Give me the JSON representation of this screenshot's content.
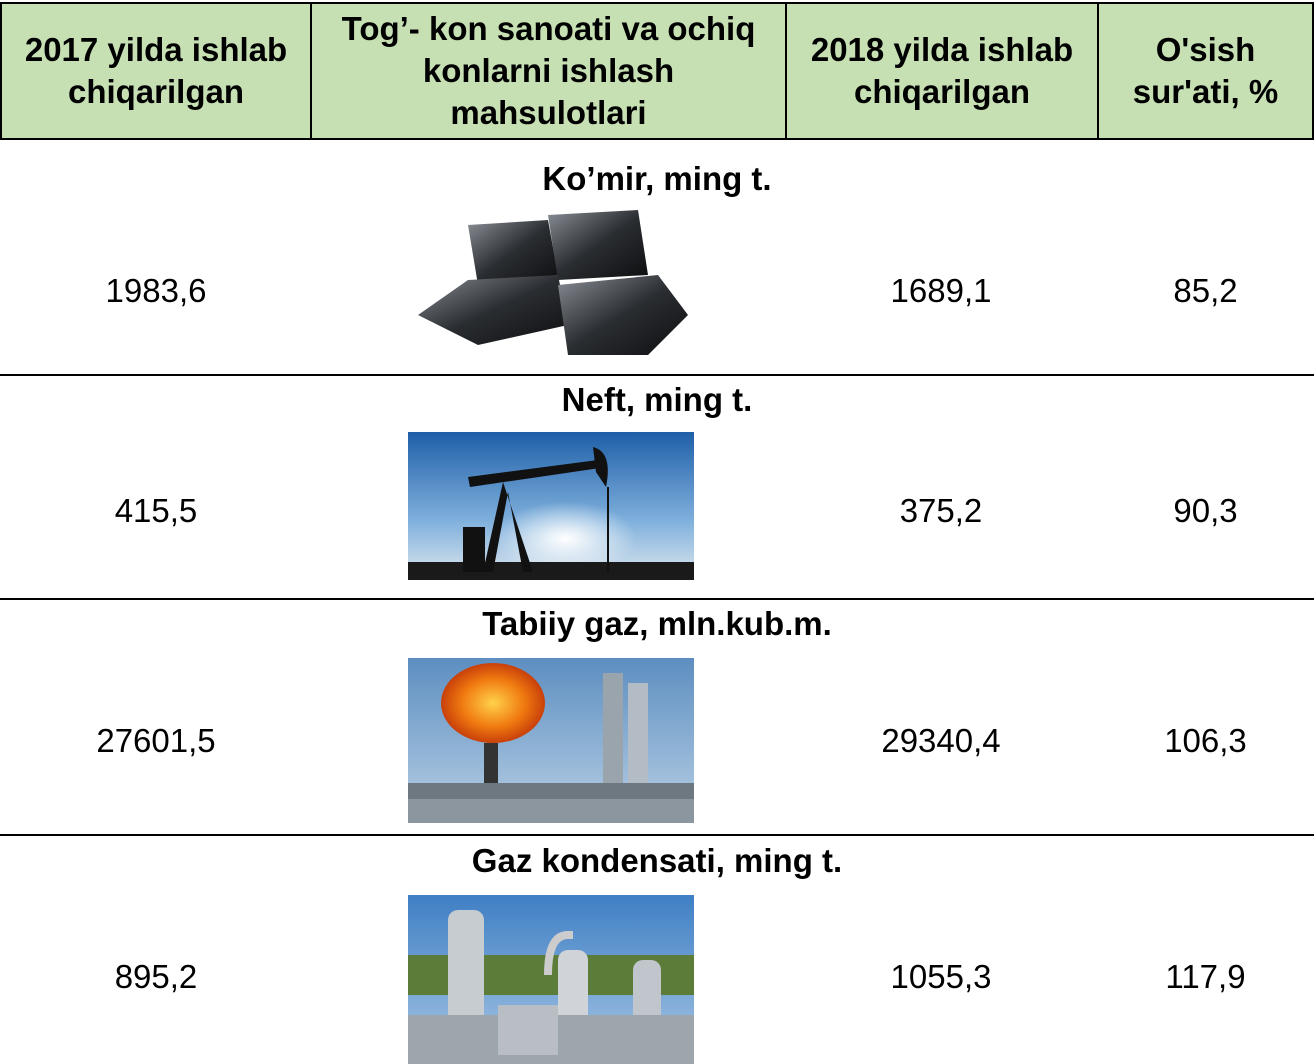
{
  "header": {
    "columns": [
      "2017 yilda ishlab chiqarilgan",
      "Tog’- kon sanoati va ochiq konlarni ishlash mahsulotlari",
      "2018 yilda ishlab chiqarilgan",
      "O'sish sur'ati, %"
    ]
  },
  "rows": [
    {
      "title": "Ko’mir, ming t.",
      "v2017": "1983,6",
      "v2018": "1689,1",
      "growth": "85,2"
    },
    {
      "title": "Neft, ming t.",
      "v2017": "415,5",
      "v2018": "375,2",
      "growth": "90,3"
    },
    {
      "title": "Tabiiy gaz, mln.kub.m.",
      "v2017": "27601,5",
      "v2018": "29340,4",
      "growth": "106,3"
    },
    {
      "title": "Gaz kondensati, ming t.",
      "v2017": "895,2",
      "v2018": "1055,3",
      "growth": "117,9"
    }
  ]
}
